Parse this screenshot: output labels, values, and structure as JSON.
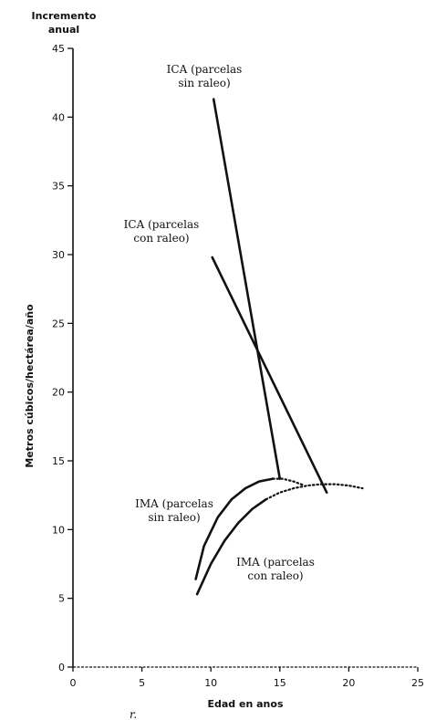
{
  "chart_data": {
    "type": "line",
    "top_title": [
      "Incremento",
      "anual"
    ],
    "ylabel": "Metros cúbicos/hectárea/año",
    "xlabel": "Edad en anos",
    "footnote": "r.",
    "xlim": [
      0,
      25
    ],
    "ylim": [
      0,
      45
    ],
    "xticks": [
      "0",
      "5",
      "10",
      "15",
      "20",
      "25"
    ],
    "yticks": [
      "0",
      "5",
      "10",
      "15",
      "20",
      "25",
      "30",
      "35",
      "40",
      "45"
    ],
    "grid": false,
    "series": [
      {
        "name": "ICA (parcelas sin raleo)",
        "label_lines": [
          "ICA (parcelas",
          "sin raleo)"
        ],
        "style": "solid",
        "x": [
          10.2,
          15.0
        ],
        "y": [
          41.3,
          13.7
        ]
      },
      {
        "name": "ICA (parcelas con raleo)",
        "label_lines": [
          "ICA (parcelas",
          "con raleo)"
        ],
        "style": "solid",
        "x": [
          10.1,
          18.4
        ],
        "y": [
          29.8,
          12.7
        ]
      },
      {
        "name": "IMA (parcelas sin raleo)",
        "label_lines": [
          "IMA (parcelas",
          "sin raleo)"
        ],
        "style": "solid-then-dotted",
        "x": [
          8.9,
          9.5,
          10.5,
          11.5,
          12.5,
          13.5,
          14.5,
          15.2,
          16.0,
          16.8
        ],
        "y": [
          6.4,
          8.8,
          10.9,
          12.2,
          13.0,
          13.5,
          13.7,
          13.7,
          13.5,
          13.2
        ],
        "solid_until_index": 6
      },
      {
        "name": "IMA (parcelas con raleo)",
        "label_lines": [
          "IMA (parcelas",
          "con raleo)"
        ],
        "style": "solid-then-dotted",
        "x": [
          9.0,
          10.0,
          11.0,
          12.0,
          13.0,
          14.0,
          15.0,
          16.0,
          17.0,
          18.0,
          19.0,
          20.0,
          21.0
        ],
        "y": [
          5.3,
          7.5,
          9.2,
          10.5,
          11.5,
          12.2,
          12.7,
          13.0,
          13.2,
          13.3,
          13.3,
          13.2,
          13.0
        ],
        "solid_until_index": 5
      }
    ]
  }
}
